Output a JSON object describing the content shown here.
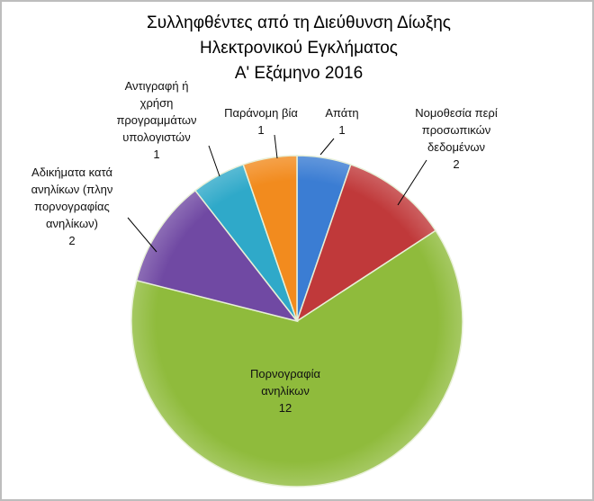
{
  "chart_data": {
    "type": "pie",
    "title": [
      "Συλληφθέντες από τη Διεύθυνση Δίωξης",
      "Ηλεκτρονικού Εγκλήματος",
      "Α' Εξάμηνο 2016"
    ],
    "start_angle": "top, clockwise",
    "legend": "none (data labels)",
    "slices": [
      {
        "label": [
          "Απάτη"
        ],
        "value": 1,
        "color": "#3b7dd3"
      },
      {
        "label": [
          "Νομοθεσία περί",
          "προσωπικών",
          "δεδομένων"
        ],
        "value": 2,
        "color": "#c0393a"
      },
      {
        "label": [
          "Πορνογραφία",
          "ανηλίκων"
        ],
        "value": 12,
        "color": "#8fbb3c"
      },
      {
        "label": [
          "Αδικήματα κατά",
          "ανηλίκων (πλην",
          "πορνογραφίας",
          "ανηλίκων)"
        ],
        "value": 2,
        "color": "#7049a3"
      },
      {
        "label": [
          "Αντιγραφή ή",
          "χρήση",
          "προγραμμάτων",
          "υπολογιστών"
        ],
        "value": 1,
        "color": "#2fa9c9"
      },
      {
        "label": [
          "Παράνομη βία"
        ],
        "value": 1,
        "color": "#f28b1e"
      }
    ]
  }
}
